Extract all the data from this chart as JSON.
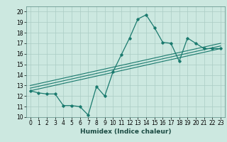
{
  "title": "",
  "xlabel": "Humidex (Indice chaleur)",
  "bg_color": "#cce8e0",
  "grid_color": "#aaccC4",
  "line_color": "#1a7a6e",
  "xlim": [
    -0.5,
    23.5
  ],
  "ylim": [
    10,
    20.5
  ],
  "xticks": [
    0,
    1,
    2,
    3,
    4,
    5,
    6,
    7,
    8,
    9,
    10,
    11,
    12,
    13,
    14,
    15,
    16,
    17,
    18,
    19,
    20,
    21,
    22,
    23
  ],
  "yticks": [
    10,
    11,
    12,
    13,
    14,
    15,
    16,
    17,
    18,
    19,
    20
  ],
  "zigzag_x": [
    0,
    1,
    2,
    3,
    4,
    5,
    6,
    7,
    8,
    9,
    10,
    11,
    12,
    13,
    14,
    15,
    16,
    17,
    18,
    19,
    20,
    21,
    22,
    23
  ],
  "zigzag_y": [
    12.5,
    12.3,
    12.2,
    12.2,
    11.1,
    11.1,
    11.0,
    10.2,
    12.9,
    12.0,
    14.3,
    15.9,
    17.5,
    19.3,
    19.7,
    18.5,
    17.1,
    17.0,
    15.3,
    17.5,
    17.0,
    16.5,
    16.5,
    16.5
  ],
  "line1_x": [
    0,
    23
  ],
  "line1_y": [
    12.5,
    16.5
  ],
  "line2_x": [
    0,
    23
  ],
  "line2_y": [
    12.75,
    16.75
  ],
  "line3_x": [
    0,
    23
  ],
  "line3_y": [
    13.0,
    17.0
  ],
  "tick_fontsize": 5.5,
  "xlabel_fontsize": 6.5
}
